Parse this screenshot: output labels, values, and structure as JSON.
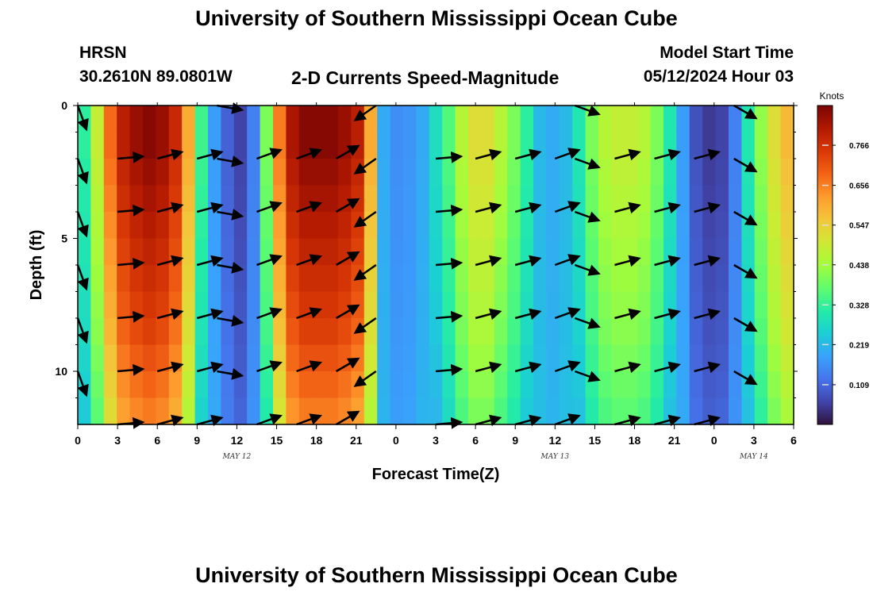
{
  "header": {
    "title": "University of Southern Mississippi Ocean Cube",
    "station": "HRSN",
    "coords": "30.2610N  89.0801W",
    "subtitle": "2-D Currents Speed-Magnitude",
    "start_label": "Model Start Time",
    "start_value": "05/12/2024 Hour 03"
  },
  "footer": {
    "title": "University of Southern Mississippi Ocean Cube"
  },
  "colors": {
    "ramp": [
      "#30123b",
      "#4145ab",
      "#4675ed",
      "#39a2fc",
      "#1bcfd4",
      "#24eca6",
      "#61fc6c",
      "#a4fc3b",
      "#d1e834",
      "#f3c63a",
      "#fe9b2d",
      "#f36315",
      "#d93806",
      "#b11901",
      "#7a0403"
    ]
  },
  "chart_data": {
    "type": "heatmap",
    "title": "2-D Currents Speed-Magnitude",
    "xlabel": "Forecast Time(Z)",
    "ylabel": "Depth (ft)",
    "x_ticks": [
      "0",
      "3",
      "6",
      "9",
      "12",
      "15",
      "18",
      "21",
      "0",
      "3",
      "6",
      "9",
      "12",
      "15",
      "18",
      "21",
      "0",
      "3",
      "6"
    ],
    "y_ticks": [
      "0",
      "5",
      "10"
    ],
    "ylim": [
      12,
      0
    ],
    "xlim_hours": [
      0,
      54
    ],
    "date_labels": [
      {
        "label": "MAY 12",
        "hour": 12
      },
      {
        "label": "MAY 13",
        "hour": 36
      },
      {
        "label": "MAY 14",
        "hour": 51
      }
    ],
    "colorbar": {
      "unit": "Knots",
      "range": [
        0,
        0.875
      ],
      "tick_labels": [
        "0.766",
        "0.656",
        "0.547",
        "0.438",
        "0.328",
        "0.219",
        "0.109"
      ],
      "tick_values": [
        0.766,
        0.656,
        0.547,
        0.438,
        0.328,
        0.219,
        0.109
      ]
    },
    "speed_profile_hours": [
      0,
      1,
      2,
      3,
      4,
      5,
      6,
      7,
      8,
      9,
      10,
      11,
      12,
      13,
      14,
      15,
      16,
      17,
      18,
      19,
      20,
      21,
      22,
      23,
      24,
      25,
      26,
      27,
      28,
      29,
      30,
      31,
      32,
      33,
      34,
      35,
      36,
      37,
      38,
      39,
      40,
      41,
      42,
      43,
      44,
      45,
      46,
      47,
      48,
      49,
      50,
      51,
      52,
      53,
      54
    ],
    "speed_profile_knots": [
      0.32,
      0.48,
      0.68,
      0.8,
      0.84,
      0.86,
      0.84,
      0.78,
      0.6,
      0.34,
      0.18,
      0.1,
      0.06,
      0.14,
      0.4,
      0.66,
      0.82,
      0.86,
      0.86,
      0.86,
      0.84,
      0.8,
      0.6,
      0.2,
      0.16,
      0.17,
      0.2,
      0.28,
      0.36,
      0.46,
      0.52,
      0.52,
      0.46,
      0.4,
      0.32,
      0.22,
      0.2,
      0.22,
      0.3,
      0.4,
      0.46,
      0.48,
      0.48,
      0.46,
      0.4,
      0.3,
      0.18,
      0.08,
      0.05,
      0.06,
      0.14,
      0.3,
      0.42,
      0.52,
      0.58
    ],
    "depth_factor": [
      1.0,
      1.0,
      0.98,
      0.96,
      0.94,
      0.92,
      0.9,
      0.88,
      0.86,
      0.83,
      0.8,
      0.77
    ],
    "vectors": {
      "hours": [
        0,
        3,
        6,
        9,
        10.5,
        13.5,
        16.5,
        19.5,
        22.5,
        27,
        30,
        33,
        36,
        37.5,
        40.5,
        43.5,
        46.5,
        49.5,
        52.5
      ],
      "depths": [
        0,
        2,
        4,
        6,
        8,
        10,
        12
      ],
      "angles_deg": [
        290,
        5,
        15,
        15,
        -10,
        20,
        20,
        30,
        215,
        5,
        15,
        15,
        20,
        -20,
        15,
        15,
        15,
        -30,
        20
      ]
    }
  }
}
